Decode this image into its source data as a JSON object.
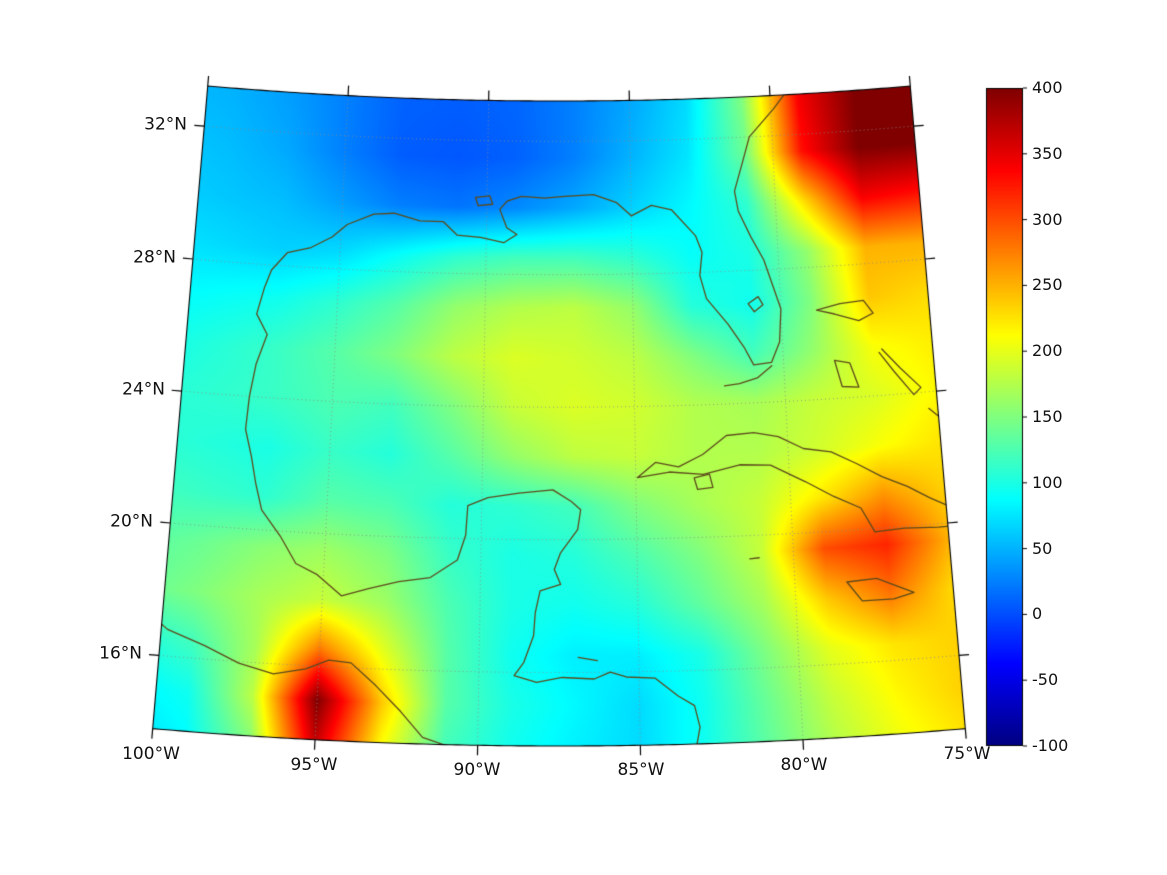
{
  "figure": {
    "background": "#ffffff",
    "frame_color": "#000000",
    "tick_color": "#000000",
    "label_color": "#111111",
    "graticule_color": "#8a8a8a",
    "coastline_color": "#5d4a1c"
  },
  "axes": {
    "lat_ticks": [
      {
        "value": 32,
        "label": "32°N"
      },
      {
        "value": 28,
        "label": "28°N"
      },
      {
        "value": 24,
        "label": "24°N"
      },
      {
        "value": 20,
        "label": "20°N"
      },
      {
        "value": 16,
        "label": "16°N"
      }
    ],
    "lon_ticks": [
      {
        "value": -100,
        "label": "100°W"
      },
      {
        "value": -95,
        "label": "95°W"
      },
      {
        "value": -90,
        "label": "90°W"
      },
      {
        "value": -85,
        "label": "85°W"
      },
      {
        "value": -80,
        "label": "80°W"
      },
      {
        "value": -75,
        "label": "75°W"
      }
    ]
  },
  "colorbar": {
    "min": -100,
    "max": 400,
    "colormap": "jet",
    "ticks": [
      {
        "value": 400,
        "label": "400"
      },
      {
        "value": 350,
        "label": "350"
      },
      {
        "value": 300,
        "label": "300"
      },
      {
        "value": 250,
        "label": "250"
      },
      {
        "value": 200,
        "label": "200"
      },
      {
        "value": 150,
        "label": "150"
      },
      {
        "value": 100,
        "label": "100"
      },
      {
        "value": 50,
        "label": "50"
      },
      {
        "value": 0,
        "label": "0"
      },
      {
        "value": -50,
        "label": "-50"
      },
      {
        "value": -100,
        "label": "-100"
      }
    ]
  },
  "chart_data": {
    "type": "heatmap",
    "title": "",
    "value_range": [
      -100,
      400
    ],
    "colormap": "jet",
    "projection": {
      "name": "lambert-conformal-conic",
      "center_lon": -87.5,
      "std_parallel1": 16,
      "std_parallel2": 30,
      "extent": {
        "lon_min": -100,
        "lon_max": -75,
        "lat_min": 13.8,
        "lat_max": 33.2
      }
    },
    "graticule": {
      "lats": [
        16,
        20,
        24,
        28,
        32
      ],
      "lons": [
        -100,
        -95,
        -90,
        -85,
        -80,
        -75
      ]
    },
    "grid": {
      "lons": [
        -101,
        -99,
        -97,
        -95,
        -93,
        -91,
        -89,
        -87,
        -85,
        -83,
        -81,
        -79,
        -77,
        -75,
        -73
      ],
      "lats": [
        33,
        31.5,
        30,
        28.5,
        27,
        25.5,
        24,
        22.5,
        21,
        19.5,
        18,
        16.5,
        15,
        13.5
      ],
      "values": [
        [
          55,
          50,
          40,
          25,
          10,
          8,
          12,
          25,
          45,
          70,
          150,
          340,
          400,
          400,
          395
        ],
        [
          60,
          55,
          45,
          25,
          8,
          5,
          10,
          25,
          50,
          75,
          140,
          330,
          400,
          400,
          390
        ],
        [
          65,
          60,
          55,
          40,
          25,
          20,
          30,
          45,
          65,
          85,
          110,
          230,
          340,
          330,
          300
        ],
        [
          75,
          70,
          65,
          70,
          90,
          110,
          120,
          120,
          110,
          90,
          100,
          160,
          250,
          250,
          230
        ],
        [
          85,
          90,
          95,
          110,
          130,
          160,
          175,
          180,
          160,
          105,
          95,
          150,
          240,
          230,
          215
        ],
        [
          95,
          105,
          115,
          130,
          150,
          180,
          195,
          190,
          180,
          150,
          120,
          160,
          210,
          220,
          215
        ],
        [
          105,
          110,
          115,
          125,
          120,
          150,
          185,
          195,
          190,
          175,
          170,
          185,
          195,
          215,
          220
        ],
        [
          110,
          105,
          100,
          115,
          105,
          130,
          160,
          180,
          185,
          175,
          175,
          190,
          210,
          225,
          230
        ],
        [
          120,
          115,
          110,
          130,
          125,
          105,
          110,
          120,
          150,
          170,
          185,
          225,
          265,
          235,
          225
        ],
        [
          130,
          140,
          155,
          165,
          150,
          115,
          100,
          105,
          125,
          150,
          185,
          300,
          320,
          250,
          230
        ],
        [
          135,
          150,
          170,
          185,
          165,
          125,
          100,
          95,
          105,
          135,
          170,
          240,
          280,
          230,
          230
        ],
        [
          100,
          120,
          170,
          280,
          200,
          130,
          95,
          80,
          80,
          100,
          150,
          200,
          225,
          235,
          240
        ],
        [
          80,
          95,
          180,
          400,
          240,
          130,
          100,
          85,
          70,
          95,
          140,
          185,
          215,
          235,
          250
        ],
        [
          70,
          85,
          150,
          360,
          210,
          120,
          95,
          80,
          70,
          95,
          135,
          175,
          205,
          225,
          245
        ]
      ]
    }
  },
  "coastlines": [
    [
      [
        -79.2,
        33.5
      ],
      [
        -79.9,
        32.8
      ],
      [
        -80.8,
        32.0
      ],
      [
        -81.1,
        31.2
      ],
      [
        -81.4,
        30.4
      ],
      [
        -81.3,
        29.8
      ],
      [
        -80.9,
        29.0
      ],
      [
        -80.5,
        28.3
      ],
      [
        -80.0,
        26.8
      ],
      [
        -80.1,
        25.8
      ],
      [
        -80.4,
        25.2
      ],
      [
        -81.0,
        25.15
      ],
      [
        -81.3,
        25.7
      ],
      [
        -81.8,
        26.4
      ],
      [
        -82.5,
        27.2
      ],
      [
        -82.7,
        27.9
      ],
      [
        -82.6,
        28.6
      ],
      [
        -82.8,
        29.1
      ],
      [
        -83.6,
        29.9
      ],
      [
        -84.3,
        30.05
      ],
      [
        -85.0,
        29.75
      ],
      [
        -85.5,
        30.15
      ],
      [
        -86.3,
        30.4
      ],
      [
        -87.3,
        30.35
      ],
      [
        -88.0,
        30.3
      ],
      [
        -88.8,
        30.35
      ],
      [
        -89.3,
        30.2
      ],
      [
        -89.55,
        29.95
      ],
      [
        -89.3,
        29.4
      ],
      [
        -88.95,
        29.2
      ],
      [
        -89.4,
        28.95
      ],
      [
        -90.2,
        29.1
      ],
      [
        -91.0,
        29.15
      ],
      [
        -91.5,
        29.55
      ],
      [
        -92.3,
        29.55
      ],
      [
        -93.2,
        29.75
      ],
      [
        -93.9,
        29.7
      ],
      [
        -94.8,
        29.35
      ],
      [
        -95.3,
        28.95
      ],
      [
        -96.0,
        28.6
      ],
      [
        -96.8,
        28.4
      ],
      [
        -97.3,
        27.85
      ],
      [
        -97.5,
        27.3
      ],
      [
        -97.7,
        26.5
      ],
      [
        -97.3,
        25.9
      ],
      [
        -97.6,
        25.0
      ],
      [
        -97.75,
        24.0
      ],
      [
        -97.8,
        23.0
      ],
      [
        -97.55,
        22.2
      ],
      [
        -97.35,
        21.4
      ],
      [
        -97.1,
        20.6
      ],
      [
        -96.45,
        19.85
      ],
      [
        -95.9,
        19.05
      ],
      [
        -95.2,
        18.75
      ],
      [
        -94.4,
        18.15
      ],
      [
        -93.55,
        18.4
      ],
      [
        -92.6,
        18.65
      ],
      [
        -91.6,
        18.8
      ],
      [
        -90.75,
        19.35
      ],
      [
        -90.5,
        20.1
      ],
      [
        -90.45,
        21.0
      ],
      [
        -89.8,
        21.25
      ],
      [
        -88.8,
        21.4
      ],
      [
        -87.7,
        21.5
      ],
      [
        -87.1,
        21.15
      ],
      [
        -86.8,
        20.9
      ],
      [
        -86.9,
        20.3
      ],
      [
        -87.45,
        19.6
      ],
      [
        -87.65,
        19.1
      ],
      [
        -87.45,
        18.65
      ],
      [
        -88.1,
        18.45
      ],
      [
        -88.25,
        17.8
      ],
      [
        -88.3,
        17.1
      ],
      [
        -88.6,
        16.3
      ],
      [
        -88.9,
        15.9
      ],
      [
        -88.2,
        15.7
      ],
      [
        -87.4,
        15.85
      ],
      [
        -86.4,
        15.8
      ],
      [
        -85.9,
        16.0
      ],
      [
        -85.4,
        15.85
      ],
      [
        -84.5,
        15.8
      ],
      [
        -83.8,
        15.25
      ],
      [
        -83.3,
        14.95
      ],
      [
        -83.15,
        14.3
      ],
      [
        -83.3,
        13.6
      ]
    ],
    [
      [
        -100.8,
        17.5
      ],
      [
        -99.8,
        16.8
      ],
      [
        -98.6,
        16.4
      ],
      [
        -97.5,
        15.95
      ],
      [
        -96.4,
        15.7
      ],
      [
        -95.4,
        15.9
      ],
      [
        -94.7,
        16.2
      ],
      [
        -94.0,
        16.15
      ],
      [
        -93.2,
        15.5
      ],
      [
        -92.4,
        14.75
      ],
      [
        -91.7,
        14.0
      ],
      [
        -90.9,
        13.75
      ],
      [
        -90.0,
        13.7
      ]
    ],
    [
      [
        -84.95,
        21.85
      ],
      [
        -84.35,
        22.3
      ],
      [
        -83.6,
        22.15
      ],
      [
        -82.8,
        22.5
      ],
      [
        -82.0,
        23.05
      ],
      [
        -81.1,
        23.1
      ],
      [
        -80.3,
        22.95
      ],
      [
        -79.5,
        22.55
      ],
      [
        -78.6,
        22.4
      ],
      [
        -77.8,
        22.0
      ],
      [
        -77.0,
        21.55
      ],
      [
        -76.2,
        21.2
      ],
      [
        -75.5,
        20.8
      ],
      [
        -74.8,
        20.45
      ],
      [
        -74.15,
        20.15
      ],
      [
        -74.35,
        19.9
      ],
      [
        -75.3,
        19.9
      ],
      [
        -76.4,
        19.95
      ],
      [
        -77.35,
        19.9
      ],
      [
        -77.75,
        20.65
      ],
      [
        -78.6,
        21.05
      ],
      [
        -79.5,
        21.55
      ],
      [
        -80.6,
        22.1
      ],
      [
        -81.6,
        22.15
      ],
      [
        -82.8,
        21.9
      ],
      [
        -83.9,
        22.0
      ],
      [
        -84.95,
        21.85
      ]
    ],
    [
      [
        -78.35,
        18.45
      ],
      [
        -77.4,
        18.5
      ],
      [
        -76.25,
        18.0
      ],
      [
        -76.9,
        17.85
      ],
      [
        -77.9,
        17.85
      ],
      [
        -78.35,
        18.45
      ]
    ],
    [
      [
        -73.4,
        19.9
      ],
      [
        -74.0,
        19.75
      ],
      [
        -74.45,
        19.65
      ],
      [
        -73.9,
        19.2
      ],
      [
        -74.4,
        18.6
      ],
      [
        -74.45,
        18.35
      ],
      [
        -73.7,
        18.3
      ],
      [
        -73.4,
        18.2
      ]
    ],
    [
      [
        -78.8,
        26.7
      ],
      [
        -78.0,
        26.85
      ],
      [
        -77.2,
        26.9
      ],
      [
        -76.9,
        26.5
      ],
      [
        -77.4,
        26.3
      ],
      [
        -78.2,
        26.55
      ],
      [
        -78.8,
        26.7
      ]
    ],
    [
      [
        -78.3,
        25.15
      ],
      [
        -77.8,
        25.05
      ],
      [
        -77.55,
        24.3
      ],
      [
        -78.1,
        24.35
      ],
      [
        -78.3,
        25.15
      ]
    ],
    [
      [
        -76.7,
        25.4
      ],
      [
        -76.15,
        24.8
      ],
      [
        -75.5,
        24.15
      ],
      [
        -75.75,
        23.95
      ],
      [
        -76.35,
        24.7
      ],
      [
        -76.8,
        25.3
      ]
    ],
    [
      [
        -75.3,
        23.5
      ],
      [
        -74.85,
        23.1
      ],
      [
        -74.3,
        22.7
      ]
    ],
    [
      [
        -80.4,
        25.1
      ],
      [
        -80.9,
        24.75
      ],
      [
        -81.5,
        24.6
      ],
      [
        -82.0,
        24.55
      ]
    ],
    [
      [
        -81.1,
        27.0
      ],
      [
        -80.75,
        27.2
      ],
      [
        -80.6,
        26.95
      ],
      [
        -80.9,
        26.75
      ],
      [
        -81.1,
        27.0
      ]
    ],
    [
      [
        -83.1,
        21.8
      ],
      [
        -82.6,
        21.9
      ],
      [
        -82.5,
        21.5
      ],
      [
        -83.0,
        21.45
      ],
      [
        -83.1,
        21.8
      ]
    ],
    [
      [
        -90.4,
        30.3
      ],
      [
        -89.9,
        30.35
      ],
      [
        -89.8,
        30.1
      ],
      [
        -90.3,
        30.05
      ],
      [
        -90.4,
        30.3
      ]
    ],
    [
      [
        -81.4,
        19.3
      ],
      [
        -81.1,
        19.32
      ]
    ],
    [
      [
        -86.9,
        16.45
      ],
      [
        -86.3,
        16.35
      ]
    ]
  ]
}
